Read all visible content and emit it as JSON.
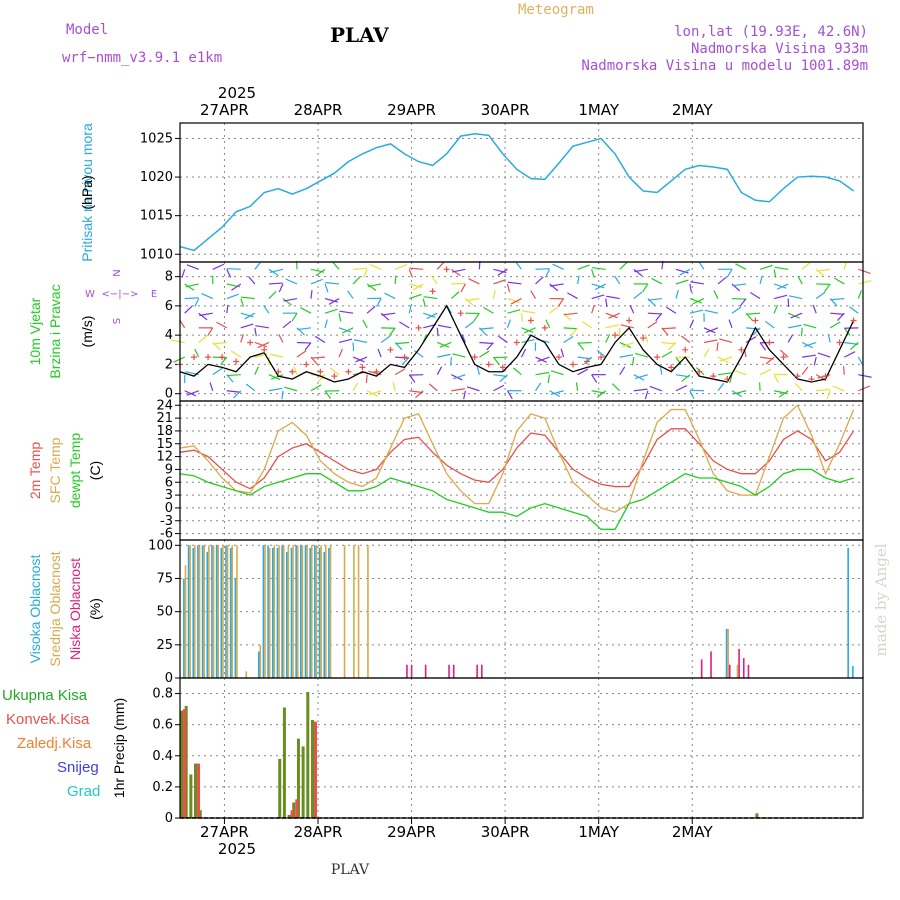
{
  "header": {
    "model_label": "Model",
    "model_name": "wrf−nmm_v3.9.1  e1km",
    "station": "PLAV",
    "chart_title": "Meteogram",
    "lonlat": "lon,lat (19.93E, 42.6N)",
    "elevation": "Nadmorska Visina 933m",
    "model_elevation": "Nadmorska Visina u modelu 1001.89m",
    "footer_station": "PLAV",
    "watermark": "made by Angel"
  },
  "colors": {
    "pressure": "#29aae1",
    "temp2m": "#e8504c",
    "sfc": "#dba94a",
    "dewpt": "#22cc22",
    "high_cloud": "#29aae1",
    "mid_cloud": "#dba94a",
    "low_cloud": "#e0207a",
    "precip_total": "#6a8d22",
    "precip_conv": "#e8504c",
    "header_purple": "#a64fd6",
    "header_gold": "#e0b060"
  },
  "chart_data": [
    {
      "type": "line",
      "name": "pressure",
      "ylabel_lines": [
        "Pritisak na nivou mora",
        "(hPa)"
      ],
      "ylim": [
        1009,
        1027
      ],
      "yticks": [
        1010,
        1015,
        1020,
        1025
      ],
      "x_hours_label_note": "",
      "x": [
        0,
        3,
        6,
        9,
        12,
        15,
        18,
        21,
        24,
        27,
        30,
        33,
        36,
        39,
        42,
        45,
        48,
        51,
        54,
        57,
        60,
        63,
        66,
        69,
        72,
        75,
        78,
        81,
        84,
        87,
        90,
        93,
        96,
        99,
        102,
        105,
        108,
        111,
        114,
        117,
        120,
        123,
        126,
        129,
        132,
        135,
        138,
        141,
        144
      ],
      "values": [
        1011.0,
        1010.5,
        1012.0,
        1013.5,
        1015.5,
        1016.2,
        1018.0,
        1018.5,
        1017.8,
        1018.5,
        1019.5,
        1020.5,
        1022.0,
        1023.0,
        1023.8,
        1024.3,
        1023.0,
        1022.0,
        1021.5,
        1023.0,
        1025.3,
        1025.6,
        1025.4,
        1023.0,
        1021.0,
        1019.8,
        1019.7,
        1021.8,
        1024.0,
        1024.5,
        1025.0,
        1023.0,
        1020.0,
        1018.2,
        1018.0,
        1019.5,
        1021.0,
        1021.5,
        1021.3,
        1021.0,
        1018.0,
        1017.0,
        1016.8,
        1018.5,
        1020.0,
        1020.1,
        1020.0,
        1019.5,
        1018.2
      ]
    },
    {
      "type": "line",
      "name": "wind",
      "ylabel_lines": [
        "10m Vjetar",
        "Brzina i Pravac",
        "(m/s)"
      ],
      "compass": [
        "N",
        "W",
        "<−|−>",
        "E",
        "S"
      ],
      "ylim": [
        -0.5,
        9
      ],
      "yticks": [
        0,
        2,
        4,
        6,
        8
      ],
      "x": [
        0,
        3,
        6,
        9,
        12,
        15,
        18,
        21,
        24,
        27,
        30,
        33,
        36,
        39,
        42,
        45,
        48,
        51,
        54,
        57,
        60,
        63,
        66,
        69,
        72,
        75,
        78,
        81,
        84,
        87,
        90,
        93,
        96,
        99,
        102,
        105,
        108,
        111,
        114,
        117,
        120,
        123,
        126,
        129,
        132,
        135,
        138,
        141,
        144
      ],
      "speed": [
        1.5,
        1.2,
        2.0,
        1.8,
        1.5,
        2.5,
        2.8,
        1.2,
        1.0,
        1.5,
        1.2,
        0.8,
        1.0,
        1.5,
        1.2,
        2.0,
        1.8,
        3.0,
        4.5,
        6.0,
        4.0,
        2.0,
        1.5,
        1.5,
        2.5,
        4.0,
        3.5,
        2.0,
        1.5,
        1.8,
        2.0,
        3.5,
        4.5,
        3.0,
        2.0,
        1.5,
        2.5,
        1.2,
        1.0,
        0.8,
        2.5,
        4.5,
        3.0,
        2.0,
        1.0,
        0.8,
        1.0,
        3.0,
        5.0
      ],
      "gust": [
        2.0,
        2.5,
        2.5,
        2.5,
        2.2,
        3.5,
        3.0,
        1.5,
        1.5,
        2.0,
        1.5,
        1.2,
        1.5,
        1.8,
        1.5,
        3.0,
        2.5,
        4.5,
        7.0,
        8.5,
        5.5,
        2.5,
        2.0,
        1.8,
        3.5,
        5.0,
        4.5,
        2.5,
        2.0,
        2.2,
        2.5,
        4.0,
        5.0,
        3.8,
        2.5,
        1.8,
        3.0,
        1.5,
        1.2,
        1.0,
        3.0,
        5.0,
        3.5,
        2.5,
        1.2,
        1.0,
        1.2,
        3.5,
        5.0
      ]
    },
    {
      "type": "line",
      "name": "temperature",
      "ylabel_lines": [
        "2m Temp",
        "SFC Temp",
        "dewpt Temp",
        "(C)"
      ],
      "ylim": [
        -7.5,
        25
      ],
      "yticks": [
        -6,
        -3,
        0,
        3,
        6,
        9,
        12,
        15,
        18,
        21,
        24
      ],
      "x": [
        0,
        3,
        6,
        9,
        12,
        15,
        18,
        21,
        24,
        27,
        30,
        33,
        36,
        39,
        42,
        45,
        48,
        51,
        54,
        57,
        60,
        63,
        66,
        69,
        72,
        75,
        78,
        81,
        84,
        87,
        90,
        93,
        96,
        99,
        102,
        105,
        108,
        111,
        114,
        117,
        120,
        123,
        126,
        129,
        132,
        135,
        138,
        141,
        144
      ],
      "series": [
        {
          "name": "2m Temp",
          "values": [
            13,
            13.5,
            12,
            9,
            6,
            4.5,
            7,
            12,
            14,
            15,
            13,
            11,
            9,
            8,
            9,
            13,
            16,
            16.5,
            13,
            10,
            8,
            6.5,
            6,
            9,
            14,
            17.5,
            17,
            13,
            9,
            7,
            5.5,
            5,
            5,
            10,
            16,
            18.5,
            18.5,
            15,
            11,
            9,
            8,
            8,
            11,
            16,
            18,
            16,
            11,
            13,
            18
          ]
        },
        {
          "name": "SFC Temp",
          "values": [
            14,
            14.5,
            11,
            7,
            4,
            3.5,
            9,
            18,
            20,
            17,
            11,
            8,
            6,
            5,
            7,
            14,
            21,
            22,
            15,
            8,
            4,
            1,
            1,
            8,
            18,
            22,
            21,
            13,
            6,
            3,
            0,
            -1,
            1,
            11,
            20,
            23,
            23,
            16,
            8,
            4,
            3,
            3,
            12,
            21,
            24,
            17,
            8,
            15,
            23
          ]
        },
        {
          "name": "dewpt Temp",
          "values": [
            8,
            7.5,
            6,
            5,
            4,
            3,
            5,
            6,
            7,
            8,
            8,
            6,
            4,
            4,
            5,
            7,
            6,
            5,
            4,
            2,
            1,
            0,
            -1,
            -1,
            -2,
            0,
            1,
            0,
            -1,
            -2,
            -5,
            -5,
            1,
            2,
            4,
            6,
            8,
            7,
            7,
            6,
            5,
            3,
            5,
            8,
            9,
            9,
            7,
            6,
            7
          ]
        }
      ]
    },
    {
      "type": "bar",
      "name": "cloud cover",
      "ylabel_lines": [
        "Visoka Oblacnost",
        "Srednja Oblacnost",
        "Niska Oblacnost",
        "(%)"
      ],
      "ylim": [
        0,
        104
      ],
      "yticks": [
        0,
        25,
        50,
        75,
        100
      ],
      "x": [
        1,
        2,
        3,
        4,
        5,
        6,
        7,
        8,
        9,
        10,
        11,
        12,
        13,
        14,
        15,
        17,
        18,
        19,
        20,
        21,
        22,
        23,
        24,
        25,
        26,
        27,
        28,
        29,
        30,
        31,
        32,
        35,
        37,
        38,
        40,
        48,
        49,
        52,
        57,
        58,
        63,
        64,
        111,
        113,
        117,
        119,
        120,
        121,
        143,
        144
      ],
      "series": [
        {
          "name": "Visoka Oblacnost",
          "values": [
            75,
            100,
            98,
            100,
            100,
            95,
            100,
            100,
            98,
            100,
            98,
            75,
            0,
            0,
            0,
            20,
            100,
            100,
            98,
            98,
            100,
            95,
            98,
            100,
            100,
            100,
            98,
            100,
            98,
            95,
            98,
            0,
            0,
            0,
            0,
            0,
            0,
            0,
            0,
            0,
            0,
            0,
            0,
            0,
            37,
            0,
            0,
            0,
            98,
            9
          ]
        },
        {
          "name": "Srednja Oblacnost",
          "values": [
            85,
            100,
            100,
            100,
            100,
            100,
            100,
            100,
            100,
            100,
            100,
            100,
            0,
            5,
            0,
            25,
            100,
            98,
            100,
            100,
            100,
            100,
            100,
            100,
            100,
            100,
            100,
            100,
            100,
            100,
            100,
            100,
            100,
            100,
            100,
            0,
            0,
            0,
            0,
            0,
            0,
            0,
            0,
            0,
            37,
            10,
            0,
            0,
            0,
            0
          ]
        },
        {
          "name": "Niska Oblacnost",
          "values": [
            0,
            0,
            0,
            0,
            0,
            0,
            0,
            0,
            0,
            0,
            0,
            0,
            0,
            0,
            0,
            0,
            0,
            0,
            0,
            0,
            0,
            0,
            0,
            0,
            0,
            0,
            0,
            0,
            0,
            0,
            0,
            0,
            0,
            0,
            0,
            10,
            10,
            10,
            10,
            10,
            10,
            10,
            14,
            20,
            10,
            22,
            15,
            10,
            0,
            0
          ]
        }
      ]
    },
    {
      "type": "bar",
      "name": "precipitation",
      "ylabel_lines": [
        "1hr Precip (mm)"
      ],
      "legend_labels": [
        "Ukupna Kisa",
        "Konvek.Kisa",
        "Zaledj.Kisa",
        "Snijeg",
        "Grad"
      ],
      "ylim": [
        0,
        0.9
      ],
      "yticks": [
        0,
        0.2,
        0.4,
        0.6,
        0.8
      ],
      "x": [
        0,
        1,
        2,
        3,
        4,
        5,
        21,
        22,
        23,
        24,
        25,
        26,
        27,
        28,
        123
      ],
      "series": [
        {
          "name": "Ukupna Kisa",
          "values": [
            0.69,
            0.72,
            0.28,
            0.35,
            0.05,
            0.0,
            0.38,
            0.71,
            0.02,
            0.1,
            0.51,
            0.46,
            0.81,
            0.63,
            0.03
          ]
        },
        {
          "name": "Konvek.Kisa",
          "values": [
            0.7,
            0.0,
            0.0,
            0.35,
            0.0,
            0.0,
            0.0,
            0.0,
            0.05,
            0.12,
            0.0,
            0.0,
            0.0,
            0.62,
            0.0
          ]
        }
      ]
    }
  ],
  "x_axis": {
    "range_hours": [
      0,
      146
    ],
    "year_top": "2025",
    "year_bottom": "2025",
    "day_ticks": [
      {
        "hour": 9.5,
        "label": "27APR"
      },
      {
        "hour": 29.5,
        "label": "28APR"
      },
      {
        "hour": 49.5,
        "label": "29APR"
      },
      {
        "hour": 69.5,
        "label": "30APR"
      },
      {
        "hour": 89.5,
        "label": "1MAY"
      },
      {
        "hour": 109.5,
        "label": "2MAY"
      }
    ]
  }
}
